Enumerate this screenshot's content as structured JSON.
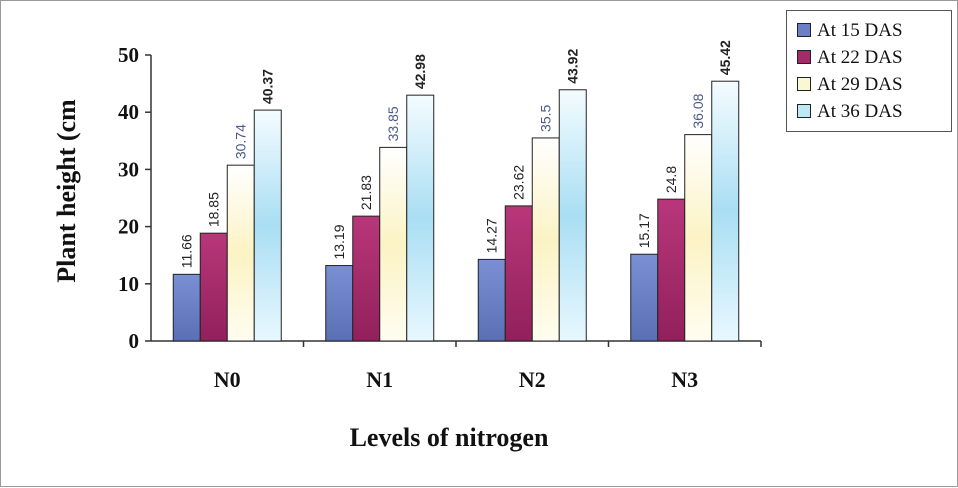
{
  "chart_data": {
    "type": "bar",
    "title": "",
    "xlabel": "Levels of nitrogen",
    "ylabel": "Plant height (cm",
    "ylim": [
      0,
      50
    ],
    "yticks": [
      0,
      10,
      20,
      30,
      40,
      50
    ],
    "categories": [
      "N0",
      "N1",
      "N2",
      "N3"
    ],
    "series": [
      {
        "name": "At 15 DAS",
        "color": "#6a7fc4",
        "values": [
          11.66,
          13.19,
          14.27,
          15.17
        ],
        "labels": [
          "11.66",
          "13.19",
          "14.27",
          "15.17"
        ]
      },
      {
        "name": "At 22 DAS",
        "color": "#a52a6a",
        "values": [
          18.85,
          21.83,
          23.62,
          24.8
        ],
        "labels": [
          "18.85",
          "21.83",
          "23.62",
          "24.8"
        ]
      },
      {
        "name": "At 29 DAS",
        "color": "#fbf7d2",
        "values": [
          30.74,
          33.85,
          35.5,
          36.08
        ],
        "labels": [
          "30.74",
          "33.85",
          "35.5",
          "36.08"
        ]
      },
      {
        "name": "At 36 DAS",
        "color": "#bde8f6",
        "values": [
          40.37,
          42.98,
          43.92,
          45.42
        ],
        "labels": [
          "40.37",
          "42.98",
          "43.92",
          "45.42"
        ]
      }
    ],
    "legend_position": "top-right",
    "grid": false
  }
}
